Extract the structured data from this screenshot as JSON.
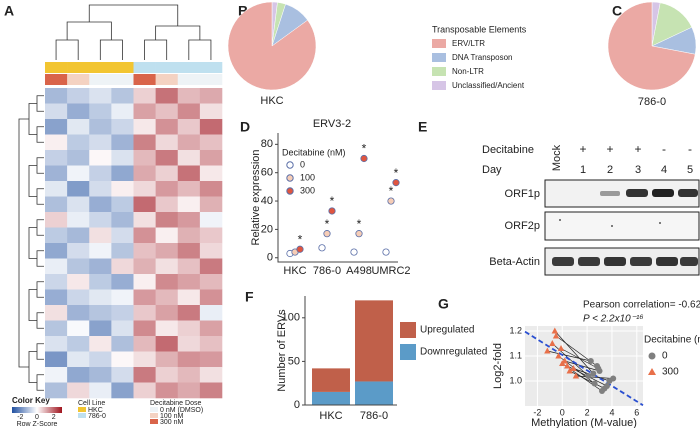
{
  "chart_data": [
    {
      "type": "heatmap",
      "panel": "A",
      "matrix": [
        [
          -1.2,
          -0.8,
          -0.5,
          -1.0,
          0.6,
          1.8,
          0.9,
          1.1
        ],
        [
          -0.6,
          -1.4,
          -0.9,
          -0.3,
          1.2,
          0.8,
          1.5,
          0.4
        ],
        [
          -1.6,
          -0.4,
          -1.1,
          -0.7,
          0.3,
          1.4,
          0.7,
          1.9
        ],
        [
          0.2,
          -0.9,
          -0.6,
          -1.3,
          1.6,
          0.5,
          1.1,
          0.8
        ],
        [
          -0.8,
          -1.1,
          0.1,
          -0.5,
          0.9,
          1.7,
          0.4,
          1.2
        ],
        [
          -1.3,
          -0.2,
          -0.8,
          -1.5,
          1.1,
          0.6,
          1.8,
          0.3
        ],
        [
          -0.4,
          -1.7,
          -0.6,
          0.2,
          0.5,
          1.3,
          0.9,
          1.5
        ],
        [
          -1.1,
          -0.5,
          -1.4,
          -0.9,
          1.9,
          0.7,
          0.2,
          1.0
        ],
        [
          0.6,
          -0.3,
          -0.7,
          -1.2,
          0.4,
          1.6,
          1.3,
          -0.2
        ],
        [
          -0.9,
          -1.2,
          0.4,
          -0.6,
          1.4,
          0.2,
          1.0,
          0.7
        ],
        [
          -1.5,
          -0.6,
          -0.2,
          -1.0,
          0.8,
          1.1,
          1.6,
          0.5
        ],
        [
          -0.3,
          -1.0,
          -1.3,
          0.5,
          1.0,
          0.4,
          0.8,
          1.7
        ],
        [
          -0.7,
          0.3,
          -0.9,
          -1.4,
          0.2,
          1.5,
          1.2,
          0.9
        ],
        [
          -1.4,
          -0.7,
          -0.4,
          -0.2,
          1.3,
          0.9,
          0.3,
          1.4
        ],
        [
          0.4,
          -1.3,
          -1.0,
          -0.8,
          0.7,
          1.2,
          1.7,
          -0.3
        ],
        [
          -1.0,
          -0.1,
          -1.6,
          -0.5,
          1.5,
          0.3,
          0.6,
          1.2
        ],
        [
          -0.5,
          -0.9,
          0.3,
          -1.1,
          0.9,
          1.9,
          0.5,
          0.8
        ],
        [
          -1.8,
          -0.4,
          -0.7,
          0.1,
          0.4,
          1.0,
          1.4,
          1.3
        ],
        [
          -0.2,
          -1.5,
          -1.2,
          -0.6,
          1.7,
          0.6,
          0.9,
          0.4
        ],
        [
          -1.1,
          0.5,
          -0.3,
          -1.6,
          0.6,
          1.4,
          1.1,
          1.6
        ]
      ],
      "cell_line": [
        "HKC",
        "HKC",
        "HKC",
        "HKC",
        "786-0",
        "786-0",
        "786-0",
        "786-0"
      ],
      "dose": [
        "300 nM",
        "100 nM",
        "0 nM (DMSO)",
        "0 nM (DMSO)",
        "300 nM",
        "100 nM",
        "0 nM (DMSO)",
        "0 nM (DMSO)"
      ],
      "color_key": {
        "title": "Color Key",
        "label": "Row Z-Score",
        "lim": [
          -3,
          3
        ],
        "ticks": [
          -2,
          0,
          2
        ]
      },
      "cell_line_legend": {
        "title": "Cell Line",
        "items": [
          {
            "name": "HKC",
            "color": "#f2c531"
          },
          {
            "name": "786-0",
            "color": "#bfe0ef"
          }
        ]
      },
      "dose_legend": {
        "title": "Decitabine Dose",
        "items": [
          {
            "name": "0 nM (DMSO)",
            "color": "#eef3f6"
          },
          {
            "name": "100 nM",
            "color": "#f4d2c2"
          },
          {
            "name": "300 nM",
            "color": "#d9644a"
          }
        ]
      }
    },
    {
      "type": "pie",
      "panel": "B",
      "title": "HKC",
      "categories": [
        "ERV/LTR",
        "DNA Transposon",
        "Non-LTR",
        "Unclassified/Ancient"
      ],
      "values": [
        85,
        10,
        3,
        2
      ],
      "colors": [
        "#eba9a4",
        "#a9bfe0",
        "#c6e3b2",
        "#d6c5e6"
      ],
      "legend_title": "Transposable Elements"
    },
    {
      "type": "pie",
      "panel": "C",
      "title": "786-0",
      "categories": [
        "ERV/LTR",
        "DNA Transposon",
        "Non-LTR",
        "Unclassified/Ancient"
      ],
      "values": [
        72,
        10,
        15,
        3
      ],
      "colors": [
        "#eba9a4",
        "#a9bfe0",
        "#c6e3b2",
        "#d6c5e6"
      ]
    },
    {
      "type": "dot",
      "panel": "D",
      "title": "ERV3-2",
      "y_label": "Relative expression",
      "legend_title": "Decitabine (nM)",
      "annotation": "*",
      "categories": [
        "HKC",
        "786-0",
        "A498",
        "UMRC2"
      ],
      "series": [
        {
          "name": "0",
          "color": "#ffffff",
          "values": [
            3,
            7,
            4,
            4
          ],
          "significant": [
            false,
            false,
            false,
            false
          ]
        },
        {
          "name": "100",
          "color": "#f6cdb6",
          "values": [
            4,
            17,
            17,
            40
          ],
          "significant": [
            false,
            true,
            true,
            true
          ]
        },
        {
          "name": "300",
          "color": "#e0553f",
          "values": [
            6,
            33,
            70,
            53
          ],
          "significant": [
            true,
            true,
            true,
            true
          ]
        }
      ],
      "ylim": [
        -3,
        88
      ],
      "yticks": [
        0,
        20,
        40,
        60,
        80
      ]
    },
    {
      "type": "blot",
      "panel": "E",
      "row_labels": [
        "Decitabine",
        "Day"
      ],
      "lanes": [
        "Mock",
        "1",
        "2",
        "3",
        "4",
        "5"
      ],
      "treatment": [
        "+",
        "+",
        "+",
        "-",
        "-"
      ],
      "bands": [
        "ORF1p",
        "ORF2p",
        "Beta-Actin"
      ]
    },
    {
      "type": "stacked_bar",
      "panel": "F",
      "y_label": "Number of ERVs",
      "categories": [
        "HKC",
        "786-0"
      ],
      "series": [
        {
          "name": "Downregulated",
          "color": "#5b9bc8",
          "values": [
            15,
            27
          ]
        },
        {
          "name": "Upregulated",
          "color": "#c0604a",
          "values": [
            27,
            93
          ]
        }
      ],
      "ylim": [
        0,
        125
      ],
      "yticks": [
        0,
        50,
        100
      ]
    },
    {
      "type": "scatter",
      "panel": "G",
      "x_label": "Methylation (M-value)",
      "y_label": "Log2-fold",
      "annotations": [
        "Pearson correlation= -0.62",
        "P < 2.2x10⁻¹⁶"
      ],
      "legend_title": "Decitabine (nM)",
      "series": [
        {
          "name": "0",
          "color": "#7f7f7f",
          "marker": "circle",
          "x": [
            2.1,
            2.6,
            3.0,
            3.4,
            2.8,
            3.8,
            2.3,
            3.2,
            4.1,
            2.5,
            3.6,
            2.9
          ],
          "y": [
            1.02,
            0.99,
            1.04,
            0.97,
            1.06,
            1.0,
            1.08,
            0.96,
            1.01,
            1.03,
            0.98,
            1.05
          ]
        },
        {
          "name": "300",
          "color": "#e8704a",
          "marker": "triangle",
          "x": [
            -0.8,
            -0.3,
            0.2,
            0.6,
            -0.5,
            0.9,
            -1.2,
            0.0,
            1.1,
            -0.6,
            0.4,
            -0.1
          ],
          "y": [
            1.15,
            1.1,
            1.08,
            1.04,
            1.18,
            1.05,
            1.12,
            1.07,
            1.02,
            1.2,
            1.06,
            1.13
          ]
        }
      ],
      "xlim": [
        -3,
        6.5
      ],
      "xticks": [
        -2,
        0,
        2,
        4,
        6
      ],
      "ylim": [
        0.9,
        1.22
      ],
      "yticks": [
        {
          "value": 1.0,
          "label": "1.0"
        },
        {
          "value": 1.1,
          "label": "1.1"
        },
        {
          "value": 1.2,
          "label": "1.2"
        }
      ]
    }
  ]
}
